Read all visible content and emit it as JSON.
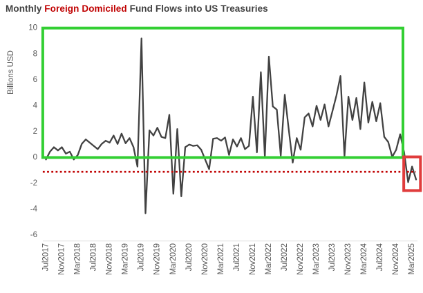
{
  "title": {
    "prefix": "Monthly ",
    "highlight": "Foreign Domiciled",
    "suffix": " Fund Flows into US Treasuries"
  },
  "chart_data": {
    "type": "line",
    "title": "Monthly Foreign Domiciled Fund Flows into US Treasuries",
    "xlabel": "",
    "ylabel": "Billions USD",
    "ylim": [
      -6,
      10
    ],
    "yticks": [
      10,
      8,
      6,
      4,
      2,
      0,
      -2,
      -4,
      -6
    ],
    "grid": false,
    "legend": false,
    "frequency": "monthly",
    "x_first_point": "Jul2017",
    "x_last_point": "Apr2025",
    "x_tick_every": 4,
    "x_tick_labels": [
      "Jul2017",
      "Nov2017",
      "Mar2018",
      "Jul2018",
      "Nov2018",
      "Mar2019",
      "Jul2019",
      "Nov2019",
      "Mar2020",
      "Jul2020",
      "Nov2020",
      "Mar2021",
      "Jul2021",
      "Nov2021",
      "Mar2022",
      "Jul2022",
      "Nov2022",
      "Mar2023",
      "Jul2023",
      "Nov2023",
      "Mar2024",
      "Jul2024",
      "Nov2024",
      "Mar2025"
    ],
    "series": [
      {
        "name": "Foreign domiciled fund flows (Billions USD)",
        "color": "#424242",
        "values": [
          -0.15,
          0.45,
          0.8,
          0.55,
          0.8,
          0.3,
          0.45,
          -0.15,
          0.2,
          1.05,
          1.4,
          1.15,
          0.9,
          0.65,
          1.05,
          1.3,
          1.15,
          1.7,
          1.05,
          1.85,
          1.1,
          1.5,
          0.8,
          -0.7,
          9.2,
          -4.3,
          2.1,
          1.7,
          2.3,
          1.6,
          1.5,
          3.3,
          -2.8,
          2.2,
          -3.0,
          0.8,
          1.0,
          0.9,
          0.95,
          0.6,
          -0.15,
          -0.9,
          1.45,
          1.5,
          1.3,
          1.55,
          0.2,
          1.4,
          0.85,
          1.5,
          0.65,
          0.9,
          4.7,
          0.4,
          6.6,
          0.05,
          7.8,
          3.95,
          3.7,
          0.15,
          4.85,
          2.2,
          -0.4,
          1.5,
          0.6,
          3.1,
          3.4,
          2.4,
          4.0,
          2.9,
          4.1,
          2.4,
          3.6,
          4.8,
          6.3,
          0.1,
          4.7,
          2.9,
          4.6,
          2.2,
          5.8,
          2.7,
          4.3,
          2.8,
          4.2,
          1.6,
          1.2,
          0.05,
          0.6,
          1.8,
          0.4,
          -1.9,
          -0.7,
          -1.7
        ]
      }
    ],
    "annotations": {
      "green_box": {
        "meaning": "highlighted positive-flow regime",
        "color": "#33CF33",
        "x0_index": -0.8,
        "x1_index": 89.7,
        "y0": 0,
        "y1": 10
      },
      "red_dotted_line": {
        "meaning": "threshold level",
        "color": "#C00000",
        "y": -1.1,
        "x0_index": -0.8,
        "x1_index": 93
      },
      "red_box": {
        "meaning": "highlight of latest negative outflows",
        "color": "#E03C3C",
        "x0_index": 89.9,
        "x1_index": 94.1,
        "y0": 0.05,
        "y1": -2.55
      }
    },
    "text_color": "#595959"
  }
}
